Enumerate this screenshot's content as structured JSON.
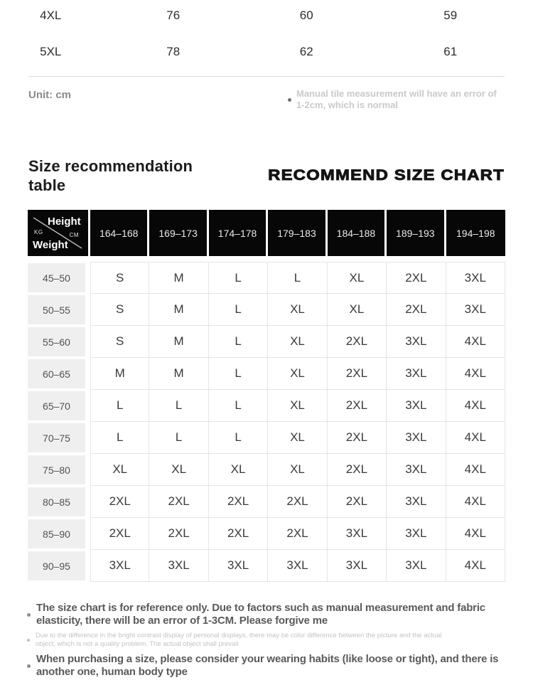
{
  "top_table": {
    "rows": [
      {
        "cells": [
          "4XL",
          "76",
          "60",
          "59"
        ]
      },
      {
        "cells": [
          "5XL",
          "78",
          "62",
          "61"
        ]
      }
    ],
    "unit_label": "Unit: cm",
    "measurement_note": "Manual tile measurement will have an error of 1-2cm, which is normal"
  },
  "headings": {
    "title_left": "Size recommendation table",
    "title_right": "RECOMMEND SIZE CHART"
  },
  "size_chart": {
    "type": "table",
    "corner": {
      "top_label": "Height",
      "top_unit": "CM",
      "bottom_label": "Weight",
      "bottom_unit": "KG"
    },
    "height_columns": [
      "164–168",
      "169–173",
      "174–178",
      "179–183",
      "184–188",
      "189–193",
      "194–198"
    ],
    "rows": [
      {
        "weight": "45–50",
        "sizes": [
          "S",
          "M",
          "L",
          "L",
          "XL",
          "2XL",
          "3XL"
        ]
      },
      {
        "weight": "50–55",
        "sizes": [
          "S",
          "M",
          "L",
          "XL",
          "XL",
          "2XL",
          "3XL"
        ]
      },
      {
        "weight": "55–60",
        "sizes": [
          "S",
          "M",
          "L",
          "XL",
          "2XL",
          "3XL",
          "4XL"
        ]
      },
      {
        "weight": "60–65",
        "sizes": [
          "M",
          "M",
          "L",
          "XL",
          "2XL",
          "3XL",
          "4XL"
        ]
      },
      {
        "weight": "65–70",
        "sizes": [
          "L",
          "L",
          "L",
          "XL",
          "2XL",
          "3XL",
          "4XL"
        ]
      },
      {
        "weight": "70–75",
        "sizes": [
          "L",
          "L",
          "L",
          "XL",
          "2XL",
          "3XL",
          "4XL"
        ]
      },
      {
        "weight": "75–80",
        "sizes": [
          "XL",
          "XL",
          "XL",
          "XL",
          "2XL",
          "3XL",
          "4XL"
        ]
      },
      {
        "weight": "80–85",
        "sizes": [
          "2XL",
          "2XL",
          "2XL",
          "2XL",
          "2XL",
          "3XL",
          "4XL"
        ]
      },
      {
        "weight": "85–90",
        "sizes": [
          "2XL",
          "2XL",
          "2XL",
          "2XL",
          "3XL",
          "3XL",
          "4XL"
        ]
      },
      {
        "weight": "90–95",
        "sizes": [
          "3XL",
          "3XL",
          "3XL",
          "3XL",
          "3XL",
          "3XL",
          "4XL"
        ]
      }
    ]
  },
  "notes": [
    {
      "style": "dark",
      "text": "The size chart is for reference only. Due to factors such as manual measurement and fabric elasticity, there will be an error of 1-3CM. Please forgive me"
    },
    {
      "style": "faint",
      "text": "Due to the difference in the bright contrast display of personal displays, there may be color difference between the picture and the actual object, which is not a quality problem. The actual object shall prevail"
    },
    {
      "style": "dark",
      "text": "When purchasing a size, please consider your wearing habits (like loose or tight), and there is another one, human body type"
    }
  ],
  "colors": {
    "header_bg": "#070707",
    "header_text": "#e9e9e9",
    "weight_cell_bg": "#f0efef",
    "grid_border": "#e5e5e5",
    "faint_note_text": "#c3c3c3",
    "dark_note_text": "#5a5a5a"
  }
}
